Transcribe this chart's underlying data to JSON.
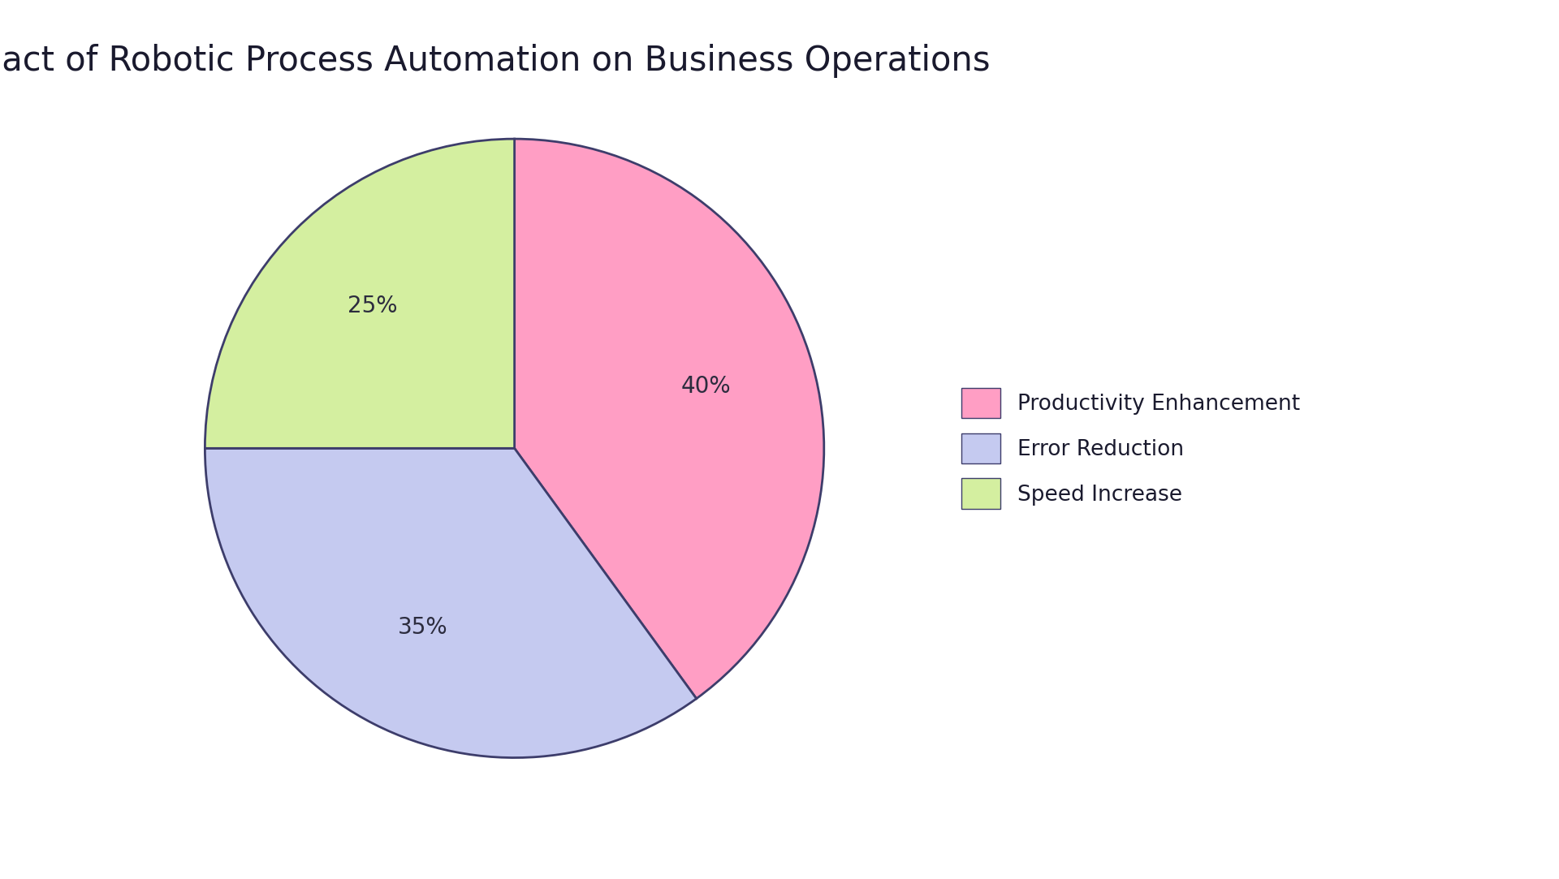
{
  "title": "Impact of Robotic Process Automation on Business Operations",
  "labels": [
    "Productivity Enhancement",
    "Error Reduction",
    "Speed Increase"
  ],
  "values": [
    40,
    35,
    25
  ],
  "colors": [
    "#FF9EC4",
    "#C5CAF0",
    "#D4EFA0"
  ],
  "edge_color": "#3d3d6b",
  "edge_width": 2.0,
  "background_color": "#ffffff",
  "title_fontsize": 30,
  "label_fontsize": 20,
  "legend_fontsize": 19,
  "startangle": 90,
  "pct_color": "#2c2c3e"
}
